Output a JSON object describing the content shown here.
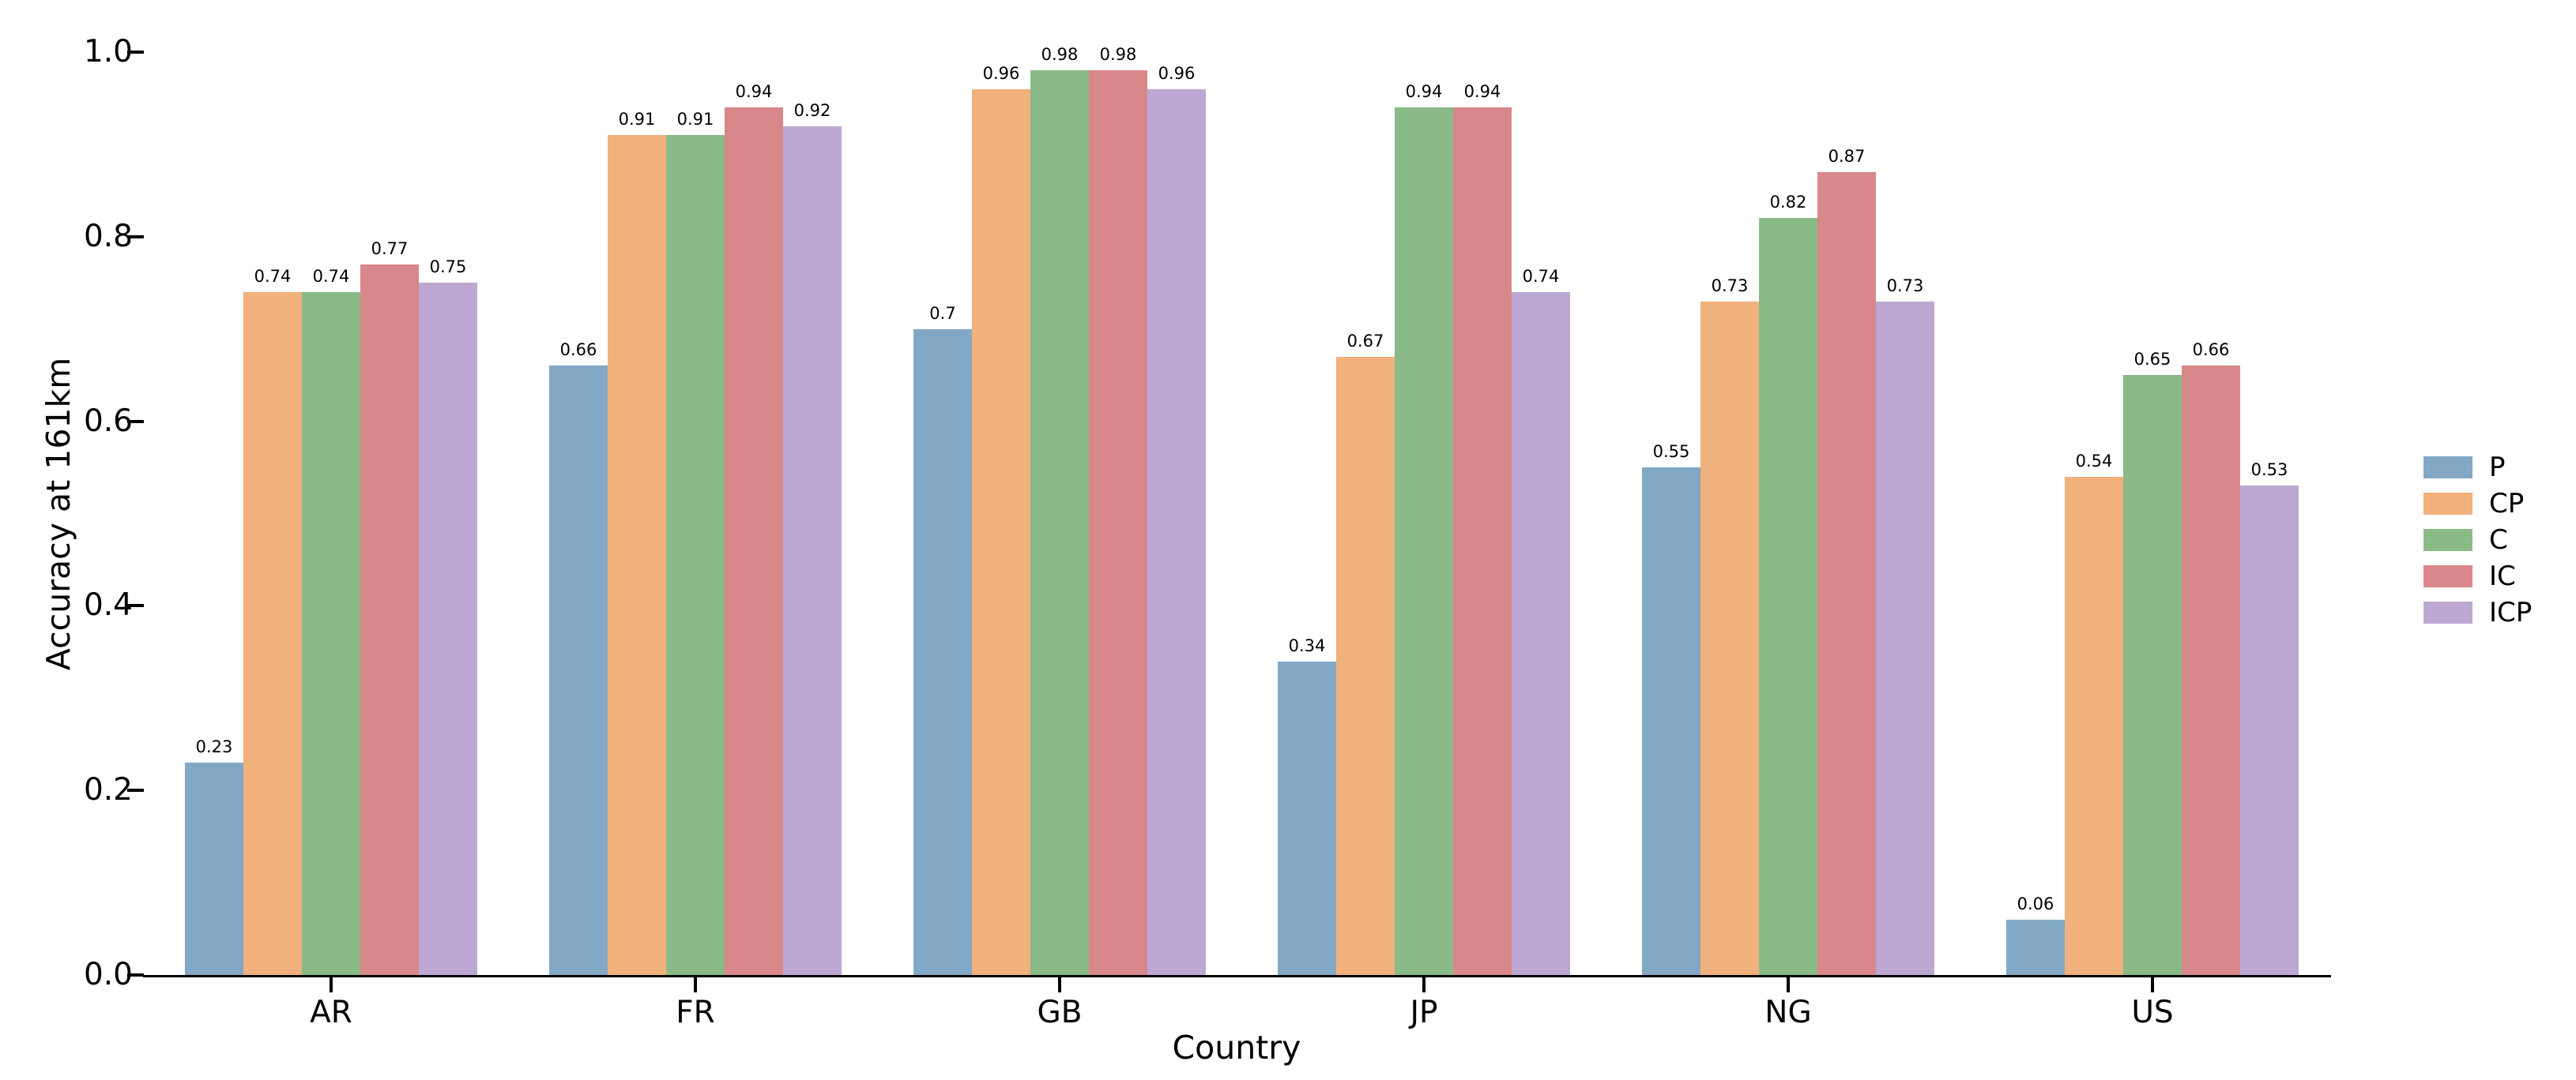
{
  "chart_data": {
    "type": "bar",
    "title": "",
    "xlabel": "Country",
    "ylabel": "Accuracy at 161km",
    "categories": [
      "AR",
      "FR",
      "GB",
      "JP",
      "NG",
      "US"
    ],
    "series": [
      {
        "name": "P",
        "color": "#82A8C6",
        "values": [
          0.23,
          0.66,
          0.7,
          0.34,
          0.55,
          0.06
        ]
      },
      {
        "name": "CP",
        "color": "#F0B17D",
        "values": [
          0.74,
          0.91,
          0.96,
          0.67,
          0.73,
          0.54
        ]
      },
      {
        "name": "C",
        "color": "#89BA88",
        "values": [
          0.74,
          0.91,
          0.98,
          0.94,
          0.82,
          0.65
        ]
      },
      {
        "name": "IC",
        "color": "#D8878A",
        "values": [
          0.77,
          0.94,
          0.98,
          0.94,
          0.87,
          0.66
        ]
      },
      {
        "name": "ICP",
        "color": "#BDA8D3",
        "values": [
          0.75,
          0.92,
          0.96,
          0.74,
          0.73,
          0.53
        ]
      }
    ],
    "bar_value_labels": [
      [
        "0.23",
        "0.66",
        "0.7",
        "0.34",
        "0.55",
        "0.06"
      ],
      [
        "0.74",
        "0.91",
        "0.96",
        "0.67",
        "0.73",
        "0.54"
      ],
      [
        "0.74",
        "0.91",
        "0.98",
        "0.94",
        "0.82",
        "0.65"
      ],
      [
        "0.77",
        "0.94",
        "0.98",
        "0.94",
        "0.87",
        "0.66"
      ],
      [
        "0.75",
        "0.92",
        "0.96",
        "0.74",
        "0.73",
        "0.53"
      ]
    ],
    "ylim": [
      0.0,
      1.0
    ],
    "yticks": [
      "0.0",
      "0.2",
      "0.4",
      "0.6",
      "0.8",
      "1.0"
    ],
    "legend_entries": [
      "P",
      "CP",
      "C",
      "IC",
      "ICP"
    ],
    "legend_position": "center right",
    "grid": false,
    "axis_color": "#000000",
    "background_color": "#ffffff"
  }
}
